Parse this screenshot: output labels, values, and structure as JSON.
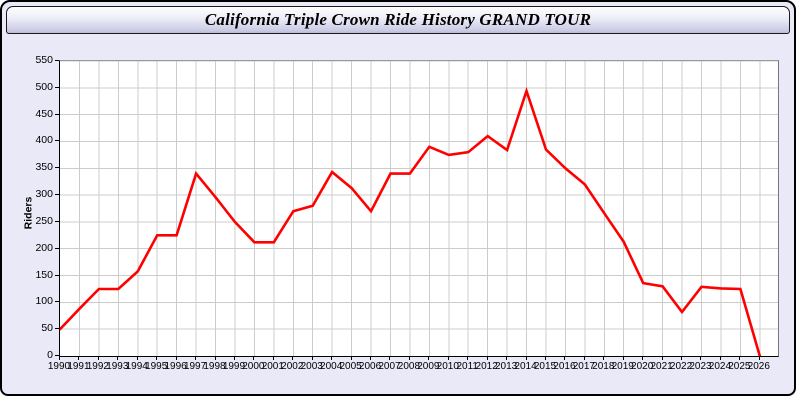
{
  "window": {
    "title": "California Triple Crown Ride History GRAND TOUR"
  },
  "chart_data": {
    "type": "line",
    "title": "California Triple Crown Ride History GRAND TOUR",
    "xlabel": "",
    "ylabel": "Riders",
    "x": [
      1990,
      1991,
      1992,
      1993,
      1994,
      1995,
      1996,
      1997,
      1998,
      1999,
      2000,
      2001,
      2002,
      2003,
      2004,
      2005,
      2006,
      2007,
      2008,
      2009,
      2010,
      2011,
      2012,
      2013,
      2014,
      2015,
      2016,
      2017,
      2018,
      2019,
      2020,
      2021,
      2022,
      2023,
      2024,
      2025,
      2026
    ],
    "series": [
      {
        "name": "Riders",
        "values": [
          50,
          88,
          125,
          125,
          158,
          225,
          225,
          340,
          296,
          250,
          212,
          212,
          270,
          280,
          343,
          313,
          270,
          340,
          340,
          390,
          375,
          380,
          410,
          384,
          494,
          385,
          350,
          320,
          266,
          213,
          136,
          130,
          82,
          129,
          126,
          125,
          0
        ]
      }
    ],
    "ylim": [
      0,
      550
    ],
    "yticks": [
      0,
      50,
      100,
      150,
      200,
      250,
      300,
      350,
      400,
      450,
      500,
      550
    ],
    "grid": true,
    "legend_position": "none",
    "line_color": "#ff0000",
    "grid_color": "#cccccc",
    "plot_background": "#ffffff"
  },
  "colors": {
    "page_background": "#e9e9f7",
    "frame_border": "#000000",
    "titlebar_top": "#ffffff",
    "titlebar_bottom": "#c9c9e3",
    "axis": "#000000"
  }
}
